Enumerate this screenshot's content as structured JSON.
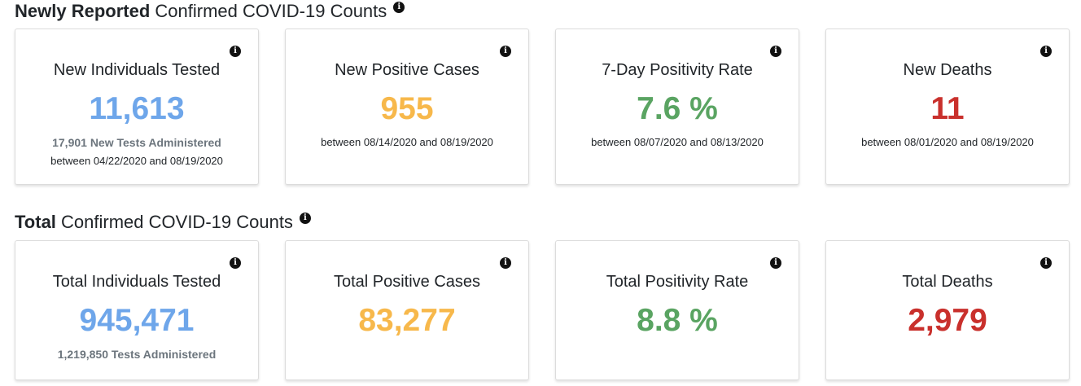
{
  "colors": {
    "blue": "#6ea6ea",
    "orange": "#f7b84b",
    "green": "#5aa462",
    "red": "#c9302c"
  },
  "icons": {
    "info": "info-icon"
  },
  "newly_reported": {
    "title_strong": "Newly Reported",
    "title_rest": "Confirmed COVID-19 Counts",
    "info_glyph": "i",
    "cards": [
      {
        "title": "New Individuals Tested",
        "value": "11,613",
        "sub": "17,901 New Tests Administered",
        "range": "between 04/22/2020 and 08/19/2020"
      },
      {
        "title": "New Positive Cases",
        "value": "955",
        "range": "between 08/14/2020 and 08/19/2020"
      },
      {
        "title": "7-Day Positivity Rate",
        "value": "7.6 %",
        "range": "between 08/07/2020 and 08/13/2020"
      },
      {
        "title": "New Deaths",
        "value": "11",
        "range": "between 08/01/2020 and 08/19/2020"
      }
    ]
  },
  "total": {
    "title_strong": "Total",
    "title_rest": "Confirmed COVID-19 Counts",
    "info_glyph": "i",
    "cards": [
      {
        "title": "Total Individuals Tested",
        "value": "945,471",
        "sub": "1,219,850 Tests Administered"
      },
      {
        "title": "Total Positive Cases",
        "value": "83,277"
      },
      {
        "title": "Total Positivity Rate",
        "value": "8.8 %"
      },
      {
        "title": "Total Deaths",
        "value": "2,979"
      }
    ]
  }
}
